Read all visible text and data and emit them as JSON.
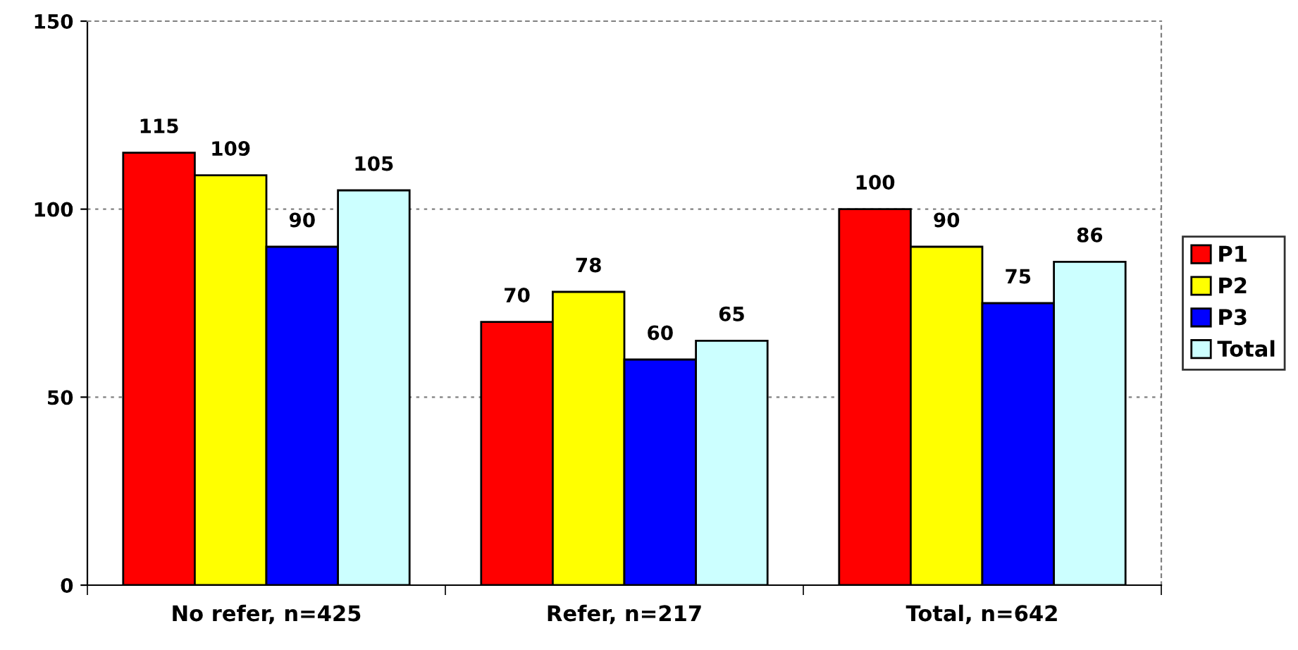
{
  "chart_data": {
    "type": "bar",
    "categories": [
      "No refer, n=425",
      "Refer, n=217",
      "Total, n=642"
    ],
    "series": [
      {
        "name": "P1",
        "color": "#ff0000",
        "values": [
          115,
          70,
          100
        ]
      },
      {
        "name": "P2",
        "color": "#ffff00",
        "values": [
          109,
          78,
          90
        ]
      },
      {
        "name": "P3",
        "color": "#0000ff",
        "values": [
          90,
          60,
          75
        ]
      },
      {
        "name": "Total",
        "color": "#ccffff",
        "values": [
          105,
          65,
          86
        ]
      }
    ],
    "ylim": [
      0,
      150
    ],
    "yticks": [
      0,
      50,
      100,
      150
    ],
    "grid": "y",
    "legend": "right",
    "data_labels": true
  }
}
